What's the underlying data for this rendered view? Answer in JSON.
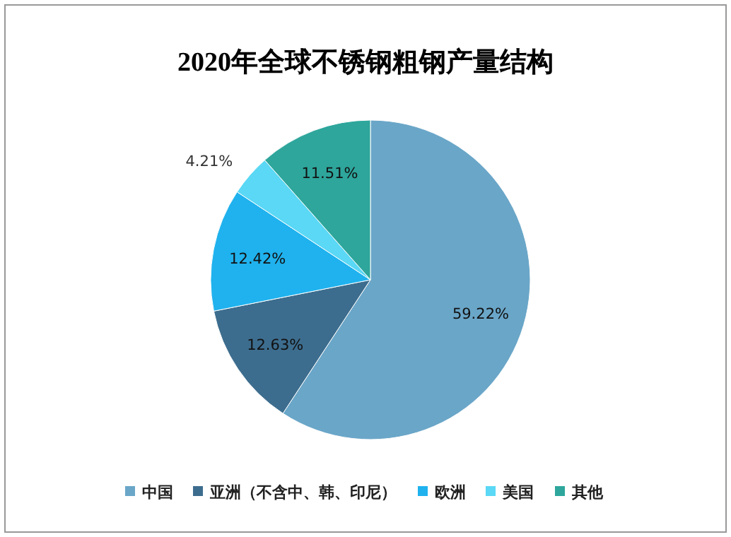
{
  "chart_data": {
    "type": "pie",
    "title": "2020年全球不锈钢粗钢产量结构",
    "categories": [
      "中国",
      "亚洲（不含中、韩、印尼）",
      "欧洲",
      "美国",
      "其他"
    ],
    "values": [
      59.22,
      12.63,
      12.42,
      4.21,
      11.51
    ],
    "colors": [
      "#6aa6c8",
      "#3d6d8e",
      "#1fb2ee",
      "#5ad8f5",
      "#2ea69c"
    ],
    "value_labels": [
      "59.22%",
      "12.63%",
      "12.42%",
      "4.21%",
      "11.51%"
    ],
    "legend": "bottom"
  }
}
